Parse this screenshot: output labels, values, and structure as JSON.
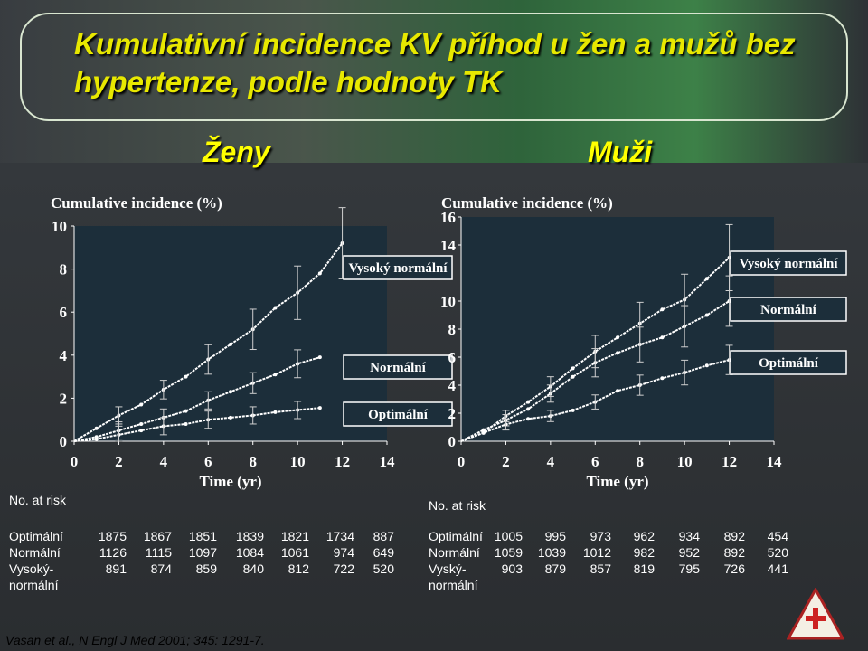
{
  "title": "Kumulativní incidence KV příhod u žen a mužů bez hypertenze, podle hodnoty TK",
  "groups": {
    "women": "Ženy",
    "men": "Muži"
  },
  "colors": {
    "plot_bg": "#1c2e3a",
    "title": "#e8e800",
    "series": "#ffffff"
  },
  "citation": "Vasan et al., N Engl J Med 2001; 345: 1291-7.",
  "chart_data": [
    {
      "type": "line",
      "panel": "Ženy",
      "ylabel": "Cumulative incidence (%)",
      "xlabel": "Time (yr)",
      "xlim": [
        0,
        14
      ],
      "ylim": [
        0,
        10
      ],
      "xticks": [
        "0",
        "2",
        "4",
        "6",
        "8",
        "10",
        "12",
        "14"
      ],
      "yticks": [
        "0",
        "2",
        "4",
        "6",
        "8",
        "10"
      ],
      "series": [
        {
          "name": "Vysoký normální",
          "x": [
            0,
            1,
            2,
            3,
            4,
            5,
            6,
            7,
            8,
            9,
            10,
            11,
            12
          ],
          "y": [
            0,
            0.6,
            1.2,
            1.7,
            2.4,
            3.0,
            3.8,
            4.5,
            5.2,
            6.2,
            6.9,
            7.8,
            9.2
          ]
        },
        {
          "name": "Normální",
          "x": [
            0,
            1,
            2,
            3,
            4,
            5,
            6,
            7,
            8,
            9,
            10,
            11
          ],
          "y": [
            0,
            0.2,
            0.5,
            0.8,
            1.1,
            1.4,
            1.9,
            2.3,
            2.7,
            3.1,
            3.6,
            3.9
          ]
        },
        {
          "name": "Optimální",
          "x": [
            0,
            1,
            2,
            3,
            4,
            5,
            6,
            7,
            8,
            9,
            10,
            11
          ],
          "y": [
            0,
            0.1,
            0.3,
            0.5,
            0.7,
            0.8,
            1.0,
            1.1,
            1.2,
            1.35,
            1.45,
            1.55
          ]
        }
      ]
    },
    {
      "type": "line",
      "panel": "Muži",
      "ylabel": "Cumulative incidence (%)",
      "xlabel": "Time (yr)",
      "xlim": [
        0,
        14
      ],
      "ylim": [
        0,
        16
      ],
      "xticks": [
        "0",
        "2",
        "4",
        "6",
        "8",
        "10",
        "12",
        "14"
      ],
      "yticks": [
        "0",
        "2",
        "4",
        "6",
        "8",
        "10",
        "14",
        "16"
      ],
      "series": [
        {
          "name": "Vysoký normální",
          "x": [
            0,
            1,
            2,
            3,
            4,
            5,
            6,
            7,
            8,
            9,
            10,
            11,
            12
          ],
          "y": [
            0,
            0.6,
            1.8,
            2.8,
            3.9,
            5.2,
            6.4,
            7.4,
            8.4,
            9.4,
            10.1,
            11.6,
            13.1
          ]
        },
        {
          "name": "Normální",
          "x": [
            0,
            1,
            2,
            3,
            4,
            5,
            6,
            7,
            8,
            9,
            10,
            11,
            12
          ],
          "y": [
            0,
            0.8,
            1.5,
            2.3,
            3.4,
            4.6,
            5.6,
            6.3,
            6.9,
            7.4,
            8.2,
            9.0,
            10.0
          ]
        },
        {
          "name": "Optimální",
          "x": [
            0,
            1,
            2,
            3,
            4,
            5,
            6,
            7,
            8,
            9,
            10,
            11,
            12
          ],
          "y": [
            0,
            0.6,
            1.2,
            1.6,
            1.8,
            2.2,
            2.8,
            3.6,
            4.0,
            4.5,
            4.9,
            5.4,
            5.8
          ]
        }
      ]
    }
  ],
  "risk_tables": [
    {
      "heading": "No. at risk",
      "rows": [
        {
          "label": "Optimální",
          "values": [
            "1875",
            "1867",
            "1851",
            "1839",
            "1821",
            "1734",
            "887"
          ]
        },
        {
          "label": "Normální",
          "values": [
            "1126",
            "1115",
            "1097",
            "1084",
            "1061",
            "974",
            "649"
          ]
        },
        {
          "label": "Vysoký-\nnormální",
          "values": [
            "891",
            "874",
            "859",
            "840",
            "812",
            "722",
            "520"
          ]
        }
      ]
    },
    {
      "heading": "No. at risk",
      "rows": [
        {
          "label": "Optimální",
          "values": [
            "1005",
            "995",
            "973",
            "962",
            "934",
            "892",
            "454"
          ]
        },
        {
          "label": "Normální",
          "values": [
            "1059",
            "1039",
            "1012",
            "982",
            "952",
            "892",
            "520"
          ]
        },
        {
          "label": "Vyský-\nnormální",
          "values": [
            "903",
            "879",
            "857",
            "819",
            "795",
            "726",
            "441"
          ]
        }
      ]
    }
  ]
}
